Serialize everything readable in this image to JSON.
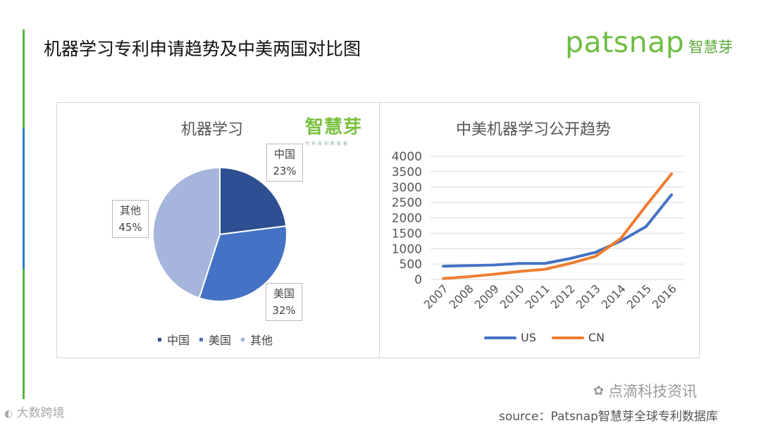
{
  "header": {
    "title": "机器学习专利申请趋势及中美两国对比图",
    "brand_en": "patsnap",
    "brand_cn": "智慧芽"
  },
  "watermark": {
    "cn": "智慧芽",
    "tagline": "为科技创新智器"
  },
  "footer": {
    "left": "大数跨境",
    "wechat": "点滴科技资讯",
    "source": "source：Patsnap智慧芽全球专利数据库"
  },
  "colors": {
    "cn_blue": "#2e4f91",
    "us_blue": "#4472c4",
    "other": "#a5b5db",
    "line_us": "#4472c4",
    "line_cn": "#ed7d31"
  },
  "chart_data": [
    {
      "type": "pie",
      "title": "机器学习",
      "categories": [
        "中国",
        "美国",
        "其他"
      ],
      "values": [
        23,
        32,
        45
      ],
      "data_labels": [
        {
          "name": "中国",
          "pct": "23%"
        },
        {
          "name": "美国",
          "pct": "32%"
        },
        {
          "name": "其他",
          "pct": "45%"
        }
      ],
      "legend": "bottom"
    },
    {
      "type": "line",
      "title": "中美机器学习公开趋势",
      "x": [
        "2007",
        "2008",
        "2009",
        "2010",
        "2011",
        "2012",
        "2013",
        "2014",
        "2015",
        "2016"
      ],
      "series": [
        {
          "name": "US",
          "values": [
            430,
            450,
            470,
            520,
            520,
            680,
            880,
            1250,
            1720,
            2750
          ]
        },
        {
          "name": "CN",
          "values": [
            30,
            90,
            170,
            260,
            330,
            520,
            750,
            1330,
            2400,
            3430
          ]
        }
      ],
      "yticks": [
        "4000",
        "3500",
        "3000",
        "2500",
        "2000",
        "1500",
        "1000",
        "500",
        "0"
      ],
      "ylim": [
        0,
        4000
      ],
      "grid": true,
      "legend": "bottom"
    }
  ]
}
